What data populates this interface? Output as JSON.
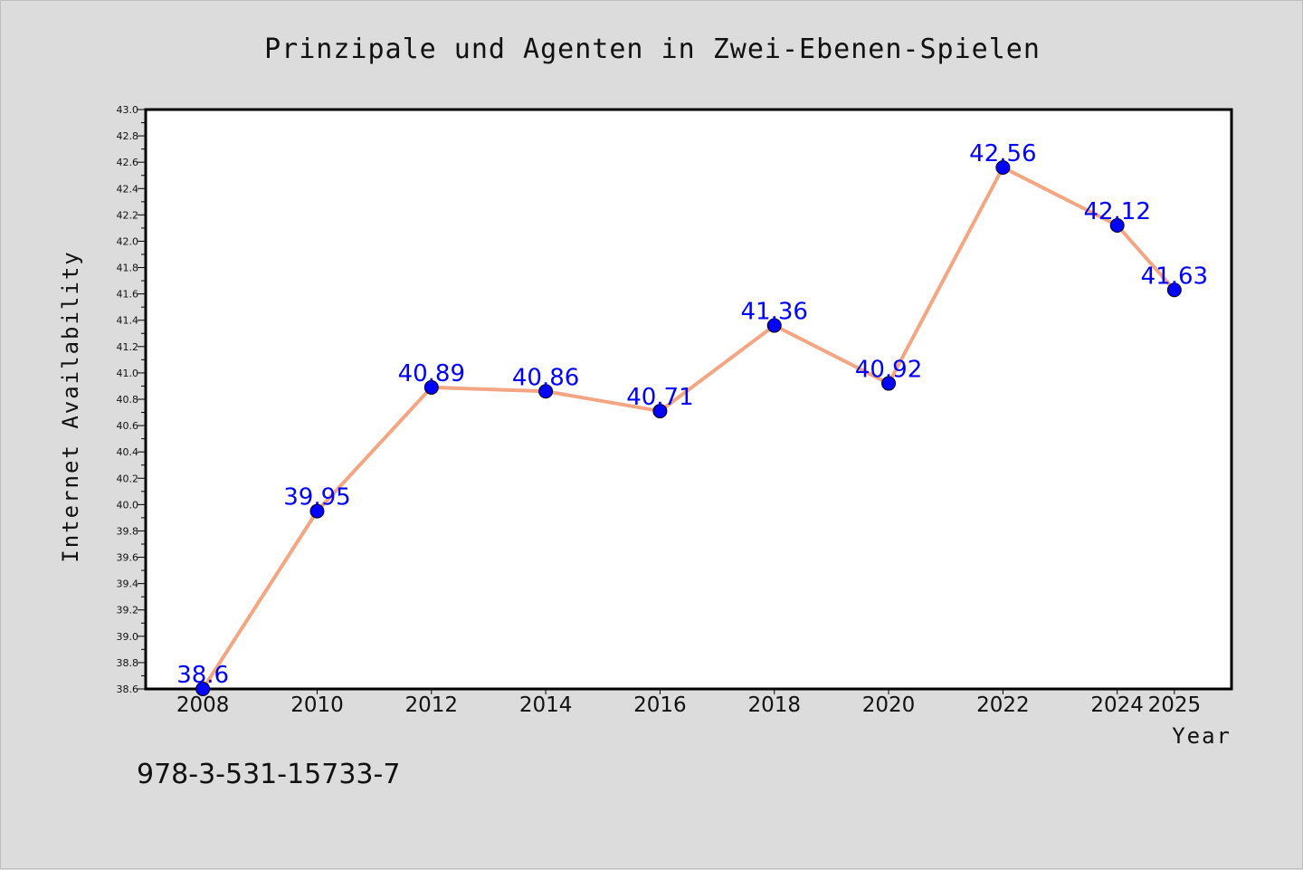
{
  "isbn": "978-3-531-15733-7",
  "colors": {
    "background": "#dcdcdc",
    "plot_background": "#ffffff",
    "line": "#f4a582",
    "marker": "#0000ff",
    "data_label": "#0000ff"
  },
  "chart_data": {
    "type": "line",
    "title": "Prinzipale und Agenten in Zwei-Ebenen-Spielen",
    "xlabel": "Year",
    "ylabel": "Internet Availability",
    "categories": [
      "2008",
      "2010",
      "2012",
      "2014",
      "2016",
      "2018",
      "2020",
      "2022",
      "2024",
      "2025"
    ],
    "series": [
      {
        "values": [
          38.6,
          39.95,
          40.89,
          40.86,
          40.71,
          41.36,
          40.92,
          42.56,
          42.12,
          41.63
        ],
        "labels": [
          "38.6",
          "39.95",
          "40.89",
          "40.86",
          "40.71",
          "41.36",
          "40.92",
          "42.56",
          "42.12",
          "41.63"
        ]
      }
    ],
    "ylim": [
      38.6,
      43.0
    ],
    "yticks": [
      "38.6",
      "38.8",
      "39.0",
      "39.2",
      "39.4",
      "39.6",
      "39.8",
      "40.0",
      "40.2",
      "40.4",
      "40.6",
      "40.8",
      "41.0",
      "41.2",
      "41.4",
      "41.6",
      "41.8",
      "42.0",
      "42.2",
      "42.4",
      "42.6",
      "42.8",
      "43.0"
    ],
    "grid": false,
    "legend": "none"
  }
}
